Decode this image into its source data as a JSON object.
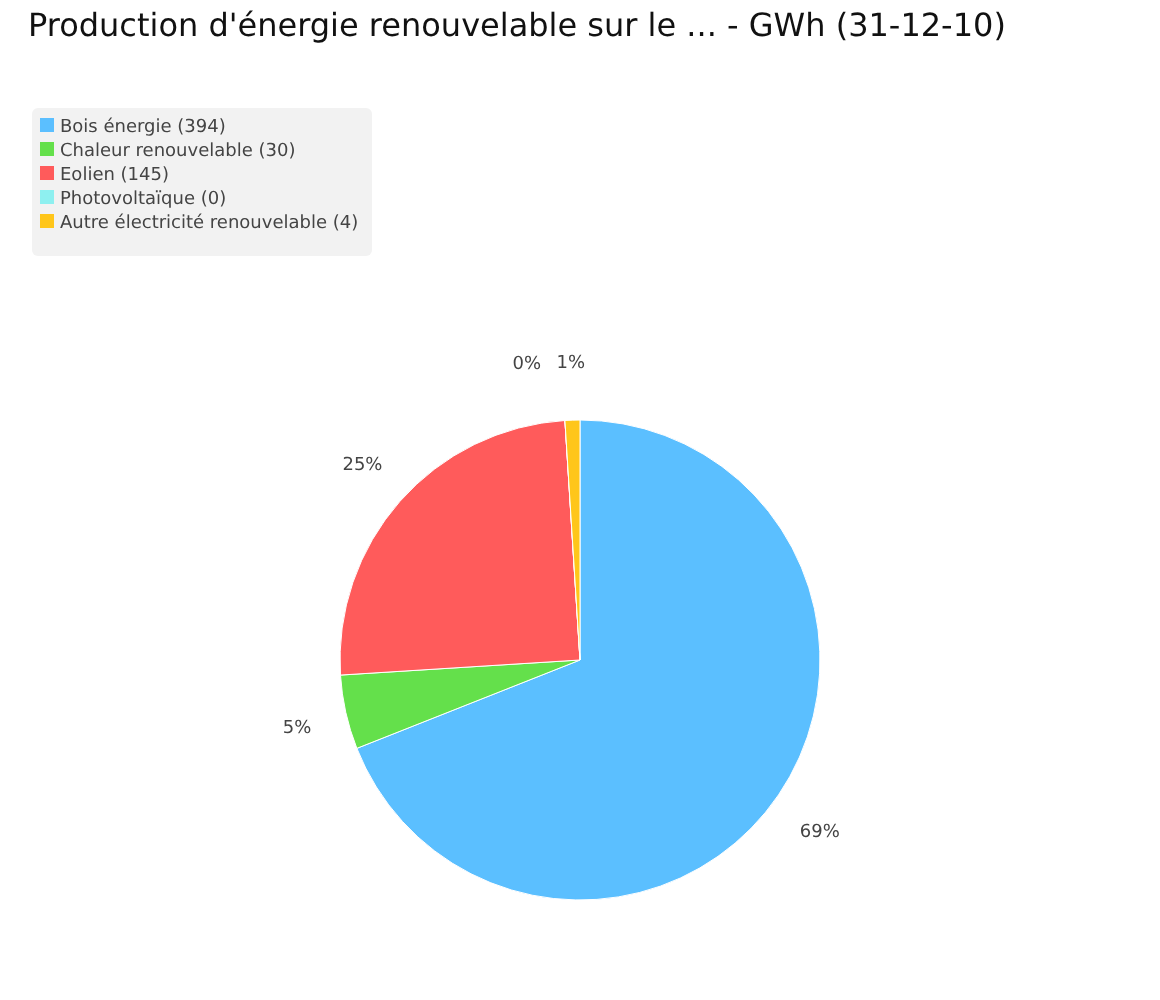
{
  "chart_data": {
    "type": "pie",
    "title": "Production d'énergie renouvelable sur le ... - GWh (31-12-10)",
    "categories": [
      "Bois énergie (394)",
      "Chaleur renouvelable (30)",
      "Eolien (145)",
      "Photovoltaïque (0)",
      "Autre électricité renouvelable (4)"
    ],
    "values": [
      69,
      5,
      25,
      0,
      1
    ],
    "colors": [
      "#5bbfff",
      "#64e04b",
      "#ff5b5b",
      "#8ef0f0",
      "#ffc61a"
    ],
    "value_labels": [
      "69%",
      "5%",
      "25%",
      "0%",
      "1%"
    ],
    "legend": "top left"
  }
}
